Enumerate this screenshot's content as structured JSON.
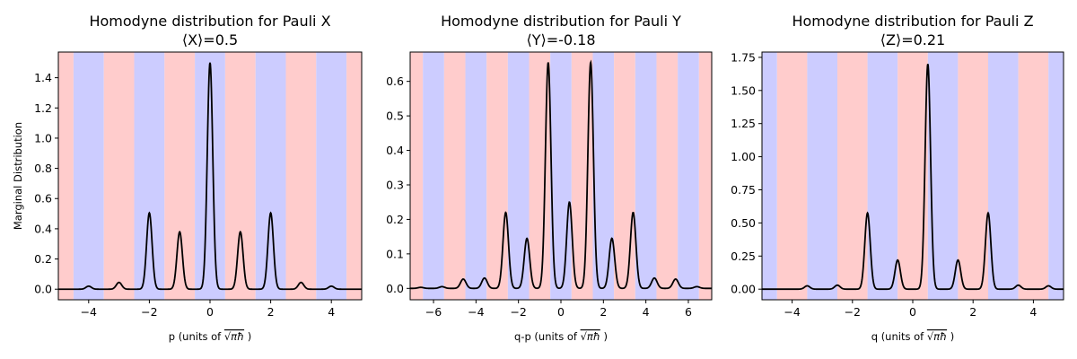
{
  "figure": {
    "ylabel": "Marginal Distribution",
    "colors": {
      "band_a": "#ffcccc",
      "band_b": "#ccccff",
      "curve": "#000000",
      "axes": "#000000",
      "background": "#ffffff"
    }
  },
  "chart_data": [
    {
      "type": "line",
      "title": "Homodyne distribution for Pauli X",
      "subtitle": "⟨X⟩=0.5",
      "xlabel_prefix": "p (units of ",
      "xlabel_suffix": ")",
      "ylabel": "Marginal Distribution",
      "xlim": [
        -5,
        5
      ],
      "ylim": [
        -0.07,
        1.57
      ],
      "xticks": [
        -4,
        -2,
        0,
        2,
        4
      ],
      "yticks": [
        0.0,
        0.2,
        0.4,
        0.6,
        0.8,
        1.0,
        1.2,
        1.4
      ],
      "ytick_decimals": 1,
      "band_pattern": [
        "a",
        "b"
      ],
      "band_width": 1,
      "band_start": -5.5,
      "peak_width": 0.09,
      "peaks": [
        {
          "x": -4.0,
          "y": 0.02
        },
        {
          "x": -3.0,
          "y": 0.045
        },
        {
          "x": -2.0,
          "y": 0.505
        },
        {
          "x": -1.0,
          "y": 0.38
        },
        {
          "x": 0.0,
          "y": 1.5
        },
        {
          "x": 1.0,
          "y": 0.38
        },
        {
          "x": 2.0,
          "y": 0.505
        },
        {
          "x": 3.0,
          "y": 0.045
        },
        {
          "x": 4.0,
          "y": 0.02
        }
      ]
    },
    {
      "type": "line",
      "title": "Homodyne distribution for Pauli Y",
      "subtitle": "⟨Y⟩=-0.18",
      "xlabel_prefix": "q-p (units of ",
      "xlabel_suffix": ")",
      "ylabel": "",
      "xlim": [
        -7.1,
        7.1
      ],
      "ylim": [
        -0.033,
        0.685
      ],
      "xticks": [
        -6,
        -4,
        -2,
        0,
        2,
        4,
        6
      ],
      "yticks": [
        0.0,
        0.1,
        0.2,
        0.3,
        0.4,
        0.5,
        0.6
      ],
      "ytick_decimals": 1,
      "band_pattern": [
        "a",
        "b"
      ],
      "band_width": 1,
      "band_start": -7.5,
      "peak_width": 0.13,
      "peaks": [
        {
          "x": -6.6,
          "y": 0.003
        },
        {
          "x": -5.6,
          "y": 0.005
        },
        {
          "x": -4.6,
          "y": 0.027
        },
        {
          "x": -3.6,
          "y": 0.03
        },
        {
          "x": -2.6,
          "y": 0.22
        },
        {
          "x": -1.6,
          "y": 0.145
        },
        {
          "x": -0.6,
          "y": 0.655
        },
        {
          "x": 0.4,
          "y": 0.25
        },
        {
          "x": 1.4,
          "y": 0.655
        },
        {
          "x": 2.4,
          "y": 0.145
        },
        {
          "x": 3.4,
          "y": 0.22
        },
        {
          "x": 4.4,
          "y": 0.03
        },
        {
          "x": 5.4,
          "y": 0.027
        },
        {
          "x": 6.4,
          "y": 0.005
        }
      ]
    },
    {
      "type": "line",
      "title": "Homodyne distribution for Pauli Z",
      "subtitle": "⟨Z⟩=0.21",
      "xlabel_prefix": "q (units of ",
      "xlabel_suffix": ")",
      "ylabel": "",
      "xlim": [
        -5,
        5
      ],
      "ylim": [
        -0.08,
        1.79
      ],
      "xticks": [
        -4,
        -2,
        0,
        2,
        4
      ],
      "yticks": [
        0.0,
        0.25,
        0.5,
        0.75,
        1.0,
        1.25,
        1.5,
        1.75
      ],
      "ytick_decimals": 2,
      "band_pattern": [
        "b",
        "a"
      ],
      "band_width": 1,
      "band_start": -5.5,
      "peak_width": 0.09,
      "peaks": [
        {
          "x": -3.5,
          "y": 0.025
        },
        {
          "x": -2.5,
          "y": 0.03
        },
        {
          "x": -1.5,
          "y": 0.575
        },
        {
          "x": -0.5,
          "y": 0.22
        },
        {
          "x": 0.5,
          "y": 1.7
        },
        {
          "x": 1.5,
          "y": 0.22
        },
        {
          "x": 2.5,
          "y": 0.575
        },
        {
          "x": 3.5,
          "y": 0.03
        },
        {
          "x": 4.5,
          "y": 0.025
        }
      ]
    }
  ]
}
